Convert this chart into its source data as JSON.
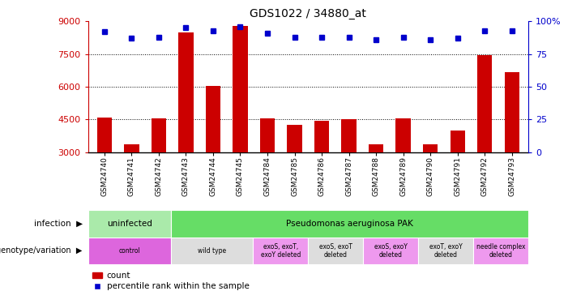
{
  "title": "GDS1022 / 34880_at",
  "samples": [
    "GSM24740",
    "GSM24741",
    "GSM24742",
    "GSM24743",
    "GSM24744",
    "GSM24745",
    "GSM24784",
    "GSM24785",
    "GSM24786",
    "GSM24787",
    "GSM24788",
    "GSM24789",
    "GSM24790",
    "GSM24791",
    "GSM24792",
    "GSM24793"
  ],
  "counts": [
    4600,
    3350,
    4550,
    8500,
    6050,
    8800,
    4550,
    4250,
    4450,
    4500,
    3350,
    4550,
    3350,
    4000,
    7450,
    6650
  ],
  "percentiles": [
    92,
    87,
    88,
    95,
    93,
    96,
    91,
    88,
    88,
    88,
    86,
    88,
    86,
    87,
    93,
    93
  ],
  "ymin": 3000,
  "ymax": 9000,
  "yticks": [
    3000,
    4500,
    6000,
    7500,
    9000
  ],
  "right_yticks": [
    0,
    25,
    50,
    75,
    100
  ],
  "bar_color": "#cc0000",
  "dot_color": "#0000cc",
  "background_color": "#ffffff",
  "tick_color_left": "#cc0000",
  "tick_color_right": "#0000cc",
  "infection_groups": [
    {
      "label": "uninfected",
      "start": 0,
      "end": 3,
      "color": "#aaeaaa"
    },
    {
      "label": "Pseudomonas aeruginosa PAK",
      "start": 3,
      "end": 16,
      "color": "#66dd66"
    }
  ],
  "genotype_groups": [
    {
      "label": "control",
      "start": 0,
      "end": 3,
      "color": "#dd66dd"
    },
    {
      "label": "wild type",
      "start": 3,
      "end": 6,
      "color": "#dddddd"
    },
    {
      "label": "exoS, exoT,\nexoY deleted",
      "start": 6,
      "end": 8,
      "color": "#ee99ee"
    },
    {
      "label": "exoS, exoT\ndeleted",
      "start": 8,
      "end": 10,
      "color": "#dddddd"
    },
    {
      "label": "exoS, exoY\ndeleted",
      "start": 10,
      "end": 12,
      "color": "#ee99ee"
    },
    {
      "label": "exoT, exoY\ndeleted",
      "start": 12,
      "end": 14,
      "color": "#dddddd"
    },
    {
      "label": "needle complex\ndeleted",
      "start": 14,
      "end": 16,
      "color": "#ee99ee"
    }
  ],
  "legend_items": [
    "count",
    "percentile rank within the sample"
  ]
}
